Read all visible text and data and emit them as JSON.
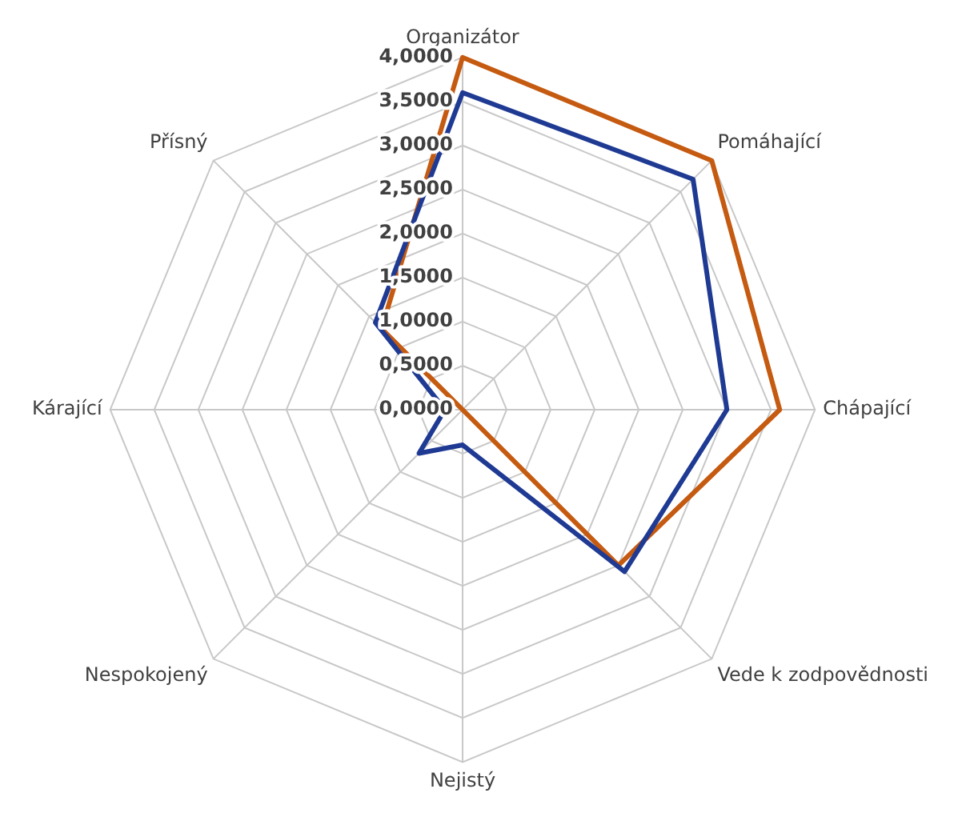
{
  "chart_data": {
    "type": "radar",
    "categories": [
      "Organizátor",
      "Pomáhající",
      "Chápající",
      "Vede k zodpovědnosti",
      "Nejistý",
      "Nespokojený",
      "Kárající",
      "Přísný"
    ],
    "series": [
      {
        "color": "#1f3a93",
        "values": [
          3.6,
          3.7,
          3.0,
          2.6,
          0.4,
          0.7,
          0.2,
          1.4
        ]
      },
      {
        "color": "#c55a11",
        "values": [
          4.0,
          4.0,
          3.6,
          2.5,
          0,
          0,
          0,
          1.3
        ]
      }
    ],
    "ylim": [
      0,
      4
    ],
    "yticks": [
      {
        "value": 0,
        "label": "0,0000"
      },
      {
        "value": 0.5,
        "label": "0,5000"
      },
      {
        "value": 1,
        "label": "1,0000"
      },
      {
        "value": 1.5,
        "label": "1,5000"
      },
      {
        "value": 2,
        "label": "2,0000"
      },
      {
        "value": 2.5,
        "label": "2,5000"
      },
      {
        "value": 3,
        "label": "3,0000"
      },
      {
        "value": 3.5,
        "label": "3,5000"
      },
      {
        "value": 4,
        "label": "4,0000"
      }
    ],
    "grid": true,
    "legend": false,
    "marker": "none"
  }
}
